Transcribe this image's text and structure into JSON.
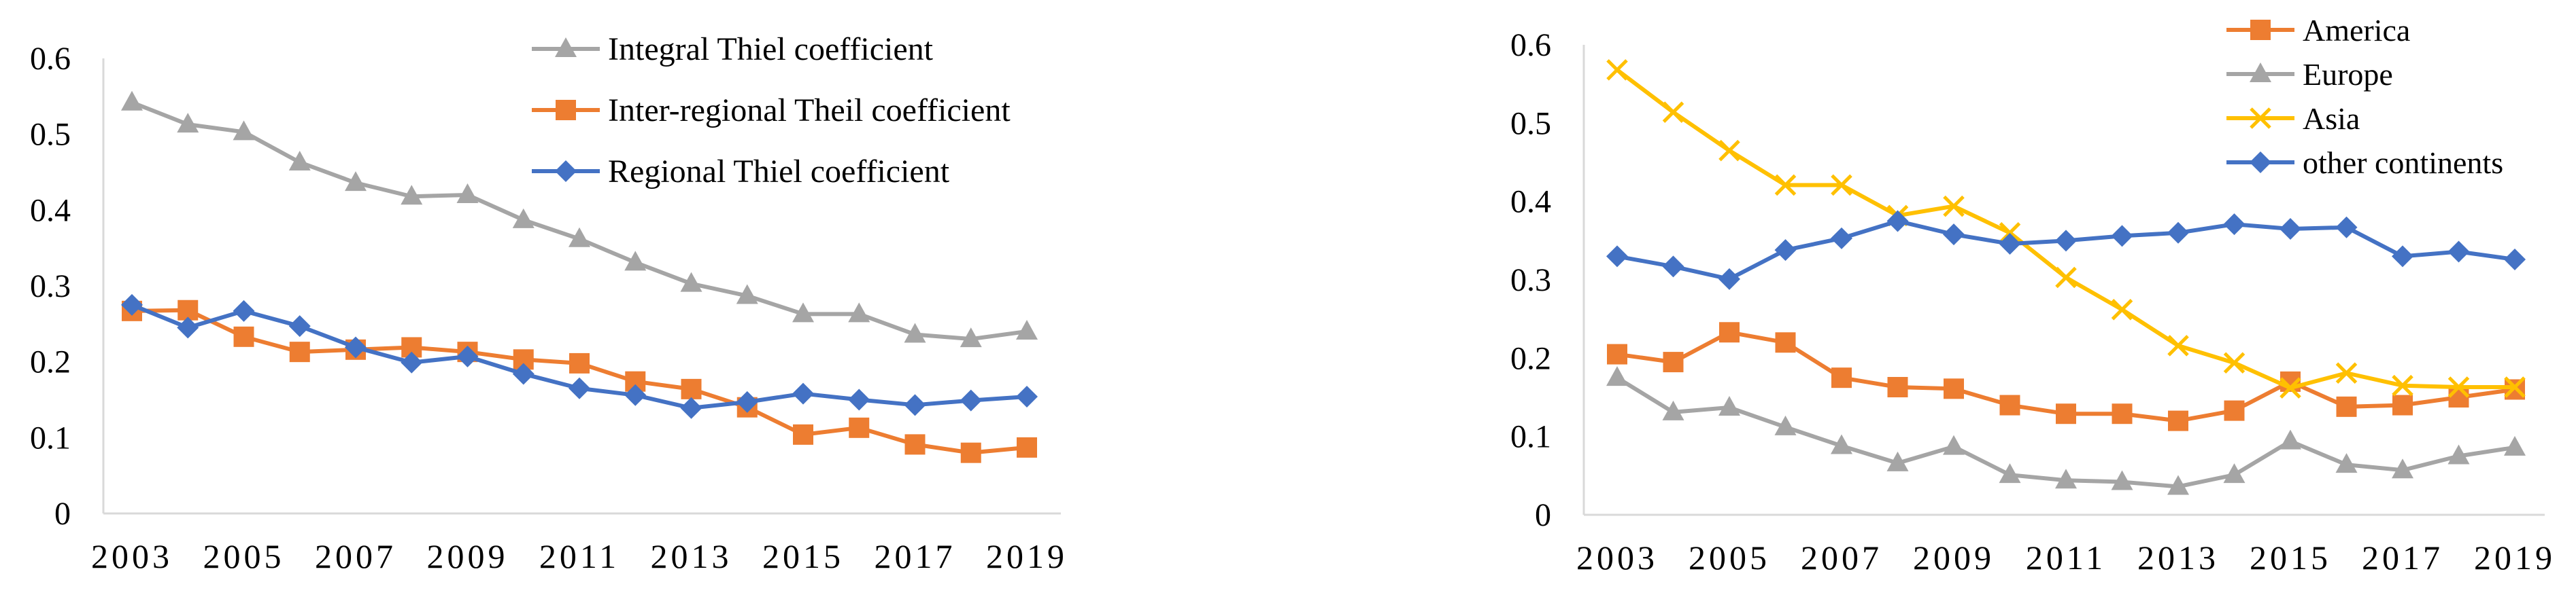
{
  "chart_data": [
    {
      "type": "line",
      "title": "",
      "xlabel": "",
      "ylabel": "",
      "x": [
        2003,
        2004,
        2005,
        2006,
        2007,
        2008,
        2009,
        2010,
        2011,
        2012,
        2013,
        2014,
        2015,
        2016,
        2017,
        2018,
        2019
      ],
      "x_tick_labels": [
        "2003",
        "2005",
        "2007",
        "2009",
        "2011",
        "2013",
        "2015",
        "2017",
        "2019"
      ],
      "ylim": [
        0,
        0.6
      ],
      "y_tick_labels": [
        "0",
        "0.1",
        "0.2",
        "0.3",
        "0.4",
        "0.5",
        "0.6"
      ],
      "grid": false,
      "legend_position": "top-right",
      "series": [
        {
          "name": "Integral Thiel coefficient",
          "color": "#a5a5a5",
          "marker": "triangle",
          "values": [
            0.542,
            0.513,
            0.503,
            0.463,
            0.436,
            0.418,
            0.42,
            0.387,
            0.362,
            0.331,
            0.303,
            0.287,
            0.263,
            0.263,
            0.236,
            0.23,
            0.24
          ]
        },
        {
          "name": "Inter-regional Theil coefficient",
          "color": "#ed7d31",
          "marker": "square",
          "values": [
            0.267,
            0.268,
            0.233,
            0.213,
            0.216,
            0.219,
            0.213,
            0.203,
            0.198,
            0.174,
            0.164,
            0.14,
            0.104,
            0.113,
            0.091,
            0.08,
            0.087
          ]
        },
        {
          "name": "Regional Thiel coefficient",
          "color": "#4472c4",
          "marker": "diamond",
          "values": [
            0.275,
            0.245,
            0.267,
            0.247,
            0.219,
            0.199,
            0.207,
            0.184,
            0.165,
            0.156,
            0.139,
            0.147,
            0.158,
            0.15,
            0.143,
            0.149,
            0.154
          ]
        }
      ]
    },
    {
      "type": "line",
      "title": "",
      "xlabel": "",
      "ylabel": "",
      "x": [
        2003,
        2004,
        2005,
        2006,
        2007,
        2008,
        2009,
        2010,
        2011,
        2012,
        2013,
        2014,
        2015,
        2016,
        2017,
        2018,
        2019
      ],
      "x_tick_labels": [
        "2003",
        "2005",
        "2007",
        "2009",
        "2011",
        "2013",
        "2015",
        "2017",
        "2019"
      ],
      "ylim": [
        0,
        0.6
      ],
      "y_tick_labels": [
        "0",
        "0.1",
        "0.2",
        "0.3",
        "0.4",
        "0.5",
        "0.6"
      ],
      "grid": false,
      "legend_position": "top-right",
      "series": [
        {
          "name": "America",
          "color": "#ed7d31",
          "marker": "square",
          "values": [
            0.205,
            0.195,
            0.233,
            0.22,
            0.175,
            0.163,
            0.161,
            0.14,
            0.129,
            0.129,
            0.12,
            0.133,
            0.17,
            0.138,
            0.14,
            0.15,
            0.16
          ]
        },
        {
          "name": "Europe",
          "color": "#a5a5a5",
          "marker": "triangle",
          "values": [
            0.175,
            0.131,
            0.137,
            0.112,
            0.088,
            0.066,
            0.087,
            0.051,
            0.044,
            0.042,
            0.036,
            0.051,
            0.094,
            0.064,
            0.057,
            0.075,
            0.086
          ]
        },
        {
          "name": "Asia",
          "color": "#ffc000",
          "marker": "x",
          "values": [
            0.568,
            0.514,
            0.465,
            0.421,
            0.421,
            0.382,
            0.394,
            0.36,
            0.303,
            0.262,
            0.216,
            0.194,
            0.162,
            0.181,
            0.165,
            0.163,
            0.163
          ]
        },
        {
          "name": "other continents",
          "color": "#4472c4",
          "marker": "diamond",
          "values": [
            0.33,
            0.317,
            0.301,
            0.338,
            0.353,
            0.375,
            0.358,
            0.346,
            0.35,
            0.356,
            0.36,
            0.371,
            0.365,
            0.367,
            0.33,
            0.336,
            0.326
          ]
        }
      ]
    }
  ]
}
